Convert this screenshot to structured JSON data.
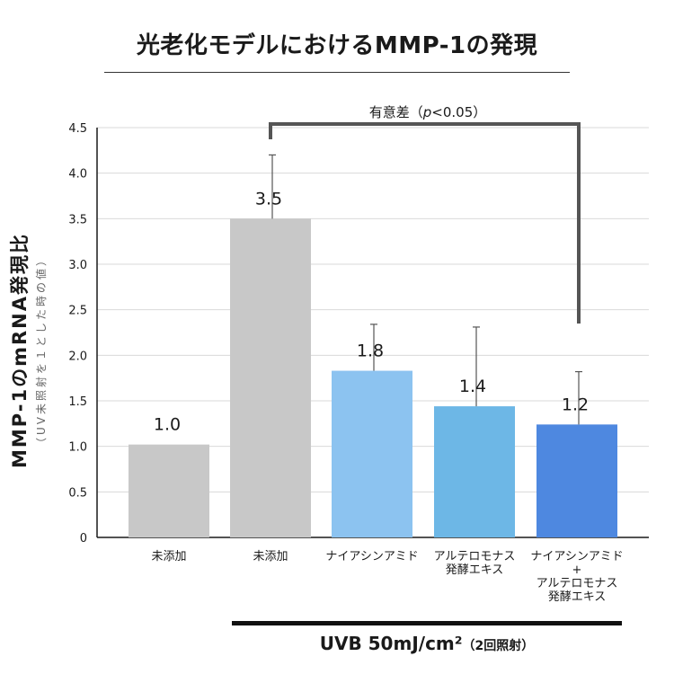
{
  "title": "光老化モデルにおけるMMP-1の発現",
  "y_axis": {
    "title": "MMP-1のmRNA発現比",
    "subtitle": "（UV未照射を１とした時の値）"
  },
  "significance": {
    "label": "有意差（",
    "p_label": "p",
    "rest": "<0.05）"
  },
  "uvb_group": {
    "label": "UVB 50mJ/cm²",
    "note": "（2回照射）"
  },
  "chart_data": {
    "type": "bar",
    "title": "光老化モデルにおけるMMP-1の発現",
    "ylabel": "MMP-1のmRNA発現比",
    "ylim": [
      0,
      4.5
    ],
    "yticks": [
      "0",
      "0.5",
      "1.0",
      "1.5",
      "2.0",
      "2.5",
      "3.0",
      "3.5",
      "4.0",
      "4.5"
    ],
    "ytick_values": [
      0,
      0.5,
      1.0,
      1.5,
      2.0,
      2.5,
      3.0,
      3.5,
      4.0,
      4.5
    ],
    "grid": true,
    "categories": [
      "未添加",
      "未添加",
      "ナイアシンアミド",
      "アルテロモナス\n発酵エキス",
      "ナイアシンアミド\n+\nアルテロモナス\n発酵エキス"
    ],
    "values": [
      1.02,
      3.5,
      1.83,
      1.44,
      1.24
    ],
    "value_labels": [
      "1.0",
      "3.5",
      "1.8",
      "1.4",
      "1.2"
    ],
    "error_upper": [
      null,
      4.2,
      2.34,
      2.31,
      1.82
    ],
    "colors": [
      "#c8c8c8",
      "#c8c8c8",
      "#8cc3f0",
      "#6db7e6",
      "#4e88e0"
    ],
    "significance_bracket": {
      "from": 1,
      "to": 4
    }
  }
}
